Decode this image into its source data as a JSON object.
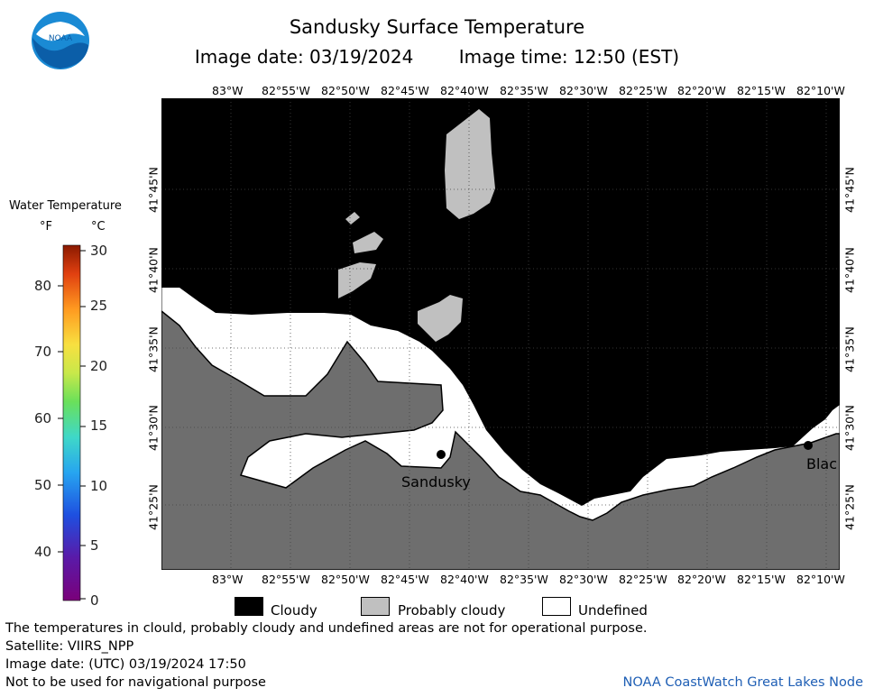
{
  "header": {
    "title": "Sandusky Surface Temperature",
    "image_date": "Image date: 03/19/2024",
    "image_time": "Image time: 12:50 (EST)",
    "logo_text": "NOAA"
  },
  "map": {
    "top_lon_labels": [
      "83°W",
      "82°55'W",
      "82°50'W",
      "82°45'W",
      "82°40'W",
      "82°35'W",
      "82°30'W",
      "82°25'W",
      "82°20'W",
      "82°15'W",
      "82°10'W"
    ],
    "bottom_lon_labels": [
      "83°W",
      "82°55'W",
      "82°50'W",
      "82°45'W",
      "82°40'W",
      "82°35'W",
      "82°30'W",
      "82°25'W",
      "82°20'W",
      "82°15'W",
      "82°10'W"
    ],
    "left_lat_labels": [
      "41°45'N",
      "41°40'N",
      "41°35'N",
      "41°30'N",
      "41°25'N"
    ],
    "right_lat_labels": [
      "41°45'N",
      "41°40'N",
      "41°35'N",
      "41°30'N",
      "41°25'N"
    ],
    "cities": [
      {
        "name": "Sandusky"
      },
      {
        "name": "Blac"
      }
    ],
    "colors": {
      "cloudy": "#000000",
      "probably_cloudy": "#c0c0c0",
      "land": "#6e6e6e",
      "undefined": "#ffffff"
    }
  },
  "colorbar": {
    "title": "Water Temperature",
    "unit_f": "°F",
    "unit_c": "°C",
    "f_labels": [
      "80",
      "70",
      "60",
      "50",
      "40"
    ],
    "c_labels": [
      "30",
      "25",
      "20",
      "15",
      "10",
      "5",
      "0"
    ]
  },
  "legend": {
    "cloudy": "Cloudy",
    "probably_cloudy": "Probably cloudy",
    "undefined": "Undefined"
  },
  "footer": {
    "line1": "The temperatures in clould, probably cloudy and undefined areas are not for operational purpose.",
    "line2": "Satellite: VIIRS_NPP",
    "line3": "Image date: (UTC) 03/19/2024  17:50",
    "line4": "Not to be used for navigational purpose",
    "credit": "NOAA CoastWatch Great Lakes Node"
  }
}
